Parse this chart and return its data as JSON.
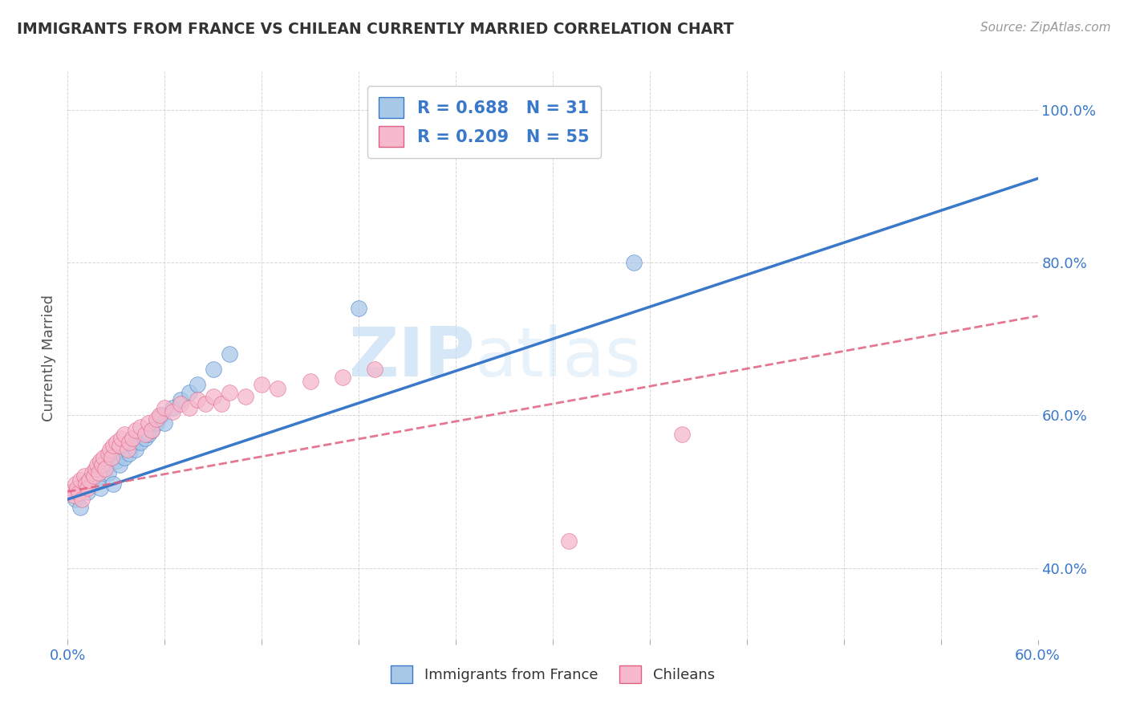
{
  "title": "IMMIGRANTS FROM FRANCE VS CHILEAN CURRENTLY MARRIED CORRELATION CHART",
  "source_text": "Source: ZipAtlas.com",
  "ylabel": "Currently Married",
  "x_min": 0.0,
  "x_max": 0.6,
  "y_min": 0.3,
  "y_max": 1.05,
  "x_ticks": [
    0.0,
    0.06,
    0.12,
    0.18,
    0.24,
    0.3,
    0.36,
    0.42,
    0.48,
    0.54,
    0.6
  ],
  "y_ticks": [
    0.4,
    0.6,
    0.8,
    1.0
  ],
  "y_tick_labels": [
    "40.0%",
    "60.0%",
    "80.0%",
    "100.0%"
  ],
  "legend_R1": "R = 0.688",
  "legend_N1": "N = 31",
  "legend_R2": "R = 0.209",
  "legend_N2": "N = 55",
  "legend_label1": "Immigrants from France",
  "legend_label2": "Chileans",
  "color_france": "#a8c8e8",
  "color_chileans": "#f5b8cc",
  "line_color_france": "#3a78c9",
  "line_color_chileans": "#e06080",
  "watermark_zip": "ZIP",
  "watermark_atlas": "atlas",
  "france_x": [
    0.005,
    0.008,
    0.01,
    0.012,
    0.015,
    0.018,
    0.02,
    0.022,
    0.025,
    0.028,
    0.03,
    0.032,
    0.035,
    0.038,
    0.04,
    0.042,
    0.045,
    0.048,
    0.05,
    0.052,
    0.055,
    0.058,
    0.06,
    0.065,
    0.07,
    0.075,
    0.08,
    0.09,
    0.1,
    0.18,
    0.35
  ],
  "france_y": [
    0.49,
    0.48,
    0.51,
    0.5,
    0.52,
    0.515,
    0.505,
    0.53,
    0.525,
    0.51,
    0.54,
    0.535,
    0.545,
    0.55,
    0.56,
    0.555,
    0.565,
    0.57,
    0.575,
    0.58,
    0.59,
    0.6,
    0.59,
    0.61,
    0.62,
    0.63,
    0.64,
    0.66,
    0.68,
    0.74,
    0.8
  ],
  "chileans_x": [
    0.002,
    0.004,
    0.005,
    0.006,
    0.007,
    0.008,
    0.009,
    0.01,
    0.011,
    0.012,
    0.013,
    0.015,
    0.016,
    0.017,
    0.018,
    0.019,
    0.02,
    0.021,
    0.022,
    0.023,
    0.025,
    0.026,
    0.027,
    0.028,
    0.03,
    0.032,
    0.033,
    0.035,
    0.037,
    0.038,
    0.04,
    0.042,
    0.045,
    0.048,
    0.05,
    0.052,
    0.055,
    0.057,
    0.06,
    0.065,
    0.07,
    0.075,
    0.08,
    0.085,
    0.09,
    0.095,
    0.1,
    0.11,
    0.12,
    0.13,
    0.15,
    0.17,
    0.19,
    0.38,
    0.31
  ],
  "chileans_y": [
    0.5,
    0.495,
    0.51,
    0.505,
    0.498,
    0.515,
    0.49,
    0.52,
    0.51,
    0.505,
    0.515,
    0.525,
    0.52,
    0.53,
    0.535,
    0.525,
    0.54,
    0.535,
    0.545,
    0.53,
    0.55,
    0.555,
    0.545,
    0.56,
    0.565,
    0.56,
    0.57,
    0.575,
    0.555,
    0.565,
    0.57,
    0.58,
    0.585,
    0.575,
    0.59,
    0.58,
    0.595,
    0.6,
    0.61,
    0.605,
    0.615,
    0.61,
    0.62,
    0.615,
    0.625,
    0.615,
    0.63,
    0.625,
    0.64,
    0.635,
    0.645,
    0.65,
    0.66,
    0.575,
    0.435
  ],
  "france_line_x0": 0.0,
  "france_line_x1": 0.6,
  "france_line_y0": 0.49,
  "france_line_y1": 0.91,
  "chileans_line_x0": 0.0,
  "chileans_line_x1": 0.6,
  "chileans_line_y0": 0.5,
  "chileans_line_y1": 0.73
}
